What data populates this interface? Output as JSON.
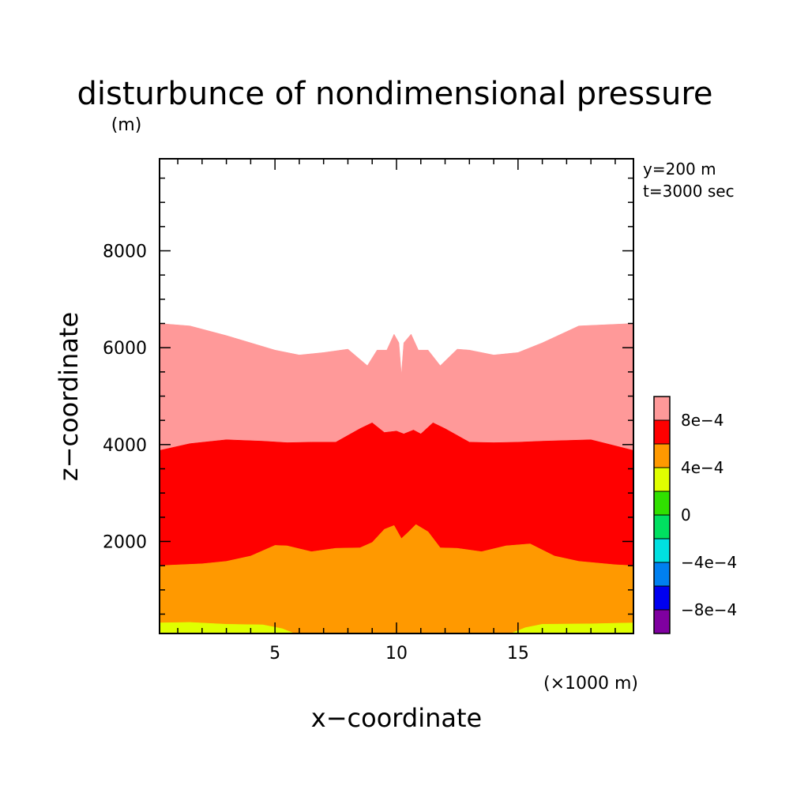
{
  "chart_data": {
    "type": "area",
    "title": "disturbunce of nondimensional pressure",
    "y_unit": "(m)",
    "x_unit": "(×1000 m)",
    "xlabel": "x−coordinate",
    "ylabel": "z−coordinate",
    "annotations": [
      "y=200 m",
      "t=3000 sec"
    ],
    "xlim": [
      0.25,
      19.75
    ],
    "ylim": [
      100,
      9900
    ],
    "x_ticks": [
      5,
      10,
      15
    ],
    "x_tick_labels": [
      "5",
      "10",
      "15"
    ],
    "y_ticks": [
      2000,
      4000,
      6000,
      8000
    ],
    "y_tick_labels": [
      "2000",
      "4000",
      "6000",
      "8000"
    ],
    "grid": false,
    "colorbar": {
      "colors": [
        "#7F00A0",
        "#0000F0",
        "#0080F0",
        "#00E0E0",
        "#00E060",
        "#30E000",
        "#E0FF00",
        "#FF9900",
        "#FF0000",
        "#FF9999"
      ],
      "tick_labels": [
        "−8e−4",
        "−4e−4",
        "0",
        "4e−4",
        "8e−4"
      ]
    },
    "bands": [
      {
        "level": "above 8e-4",
        "color": "#FF9999",
        "top": [
          [
            0.25,
            6500
          ],
          [
            1.5,
            6450
          ],
          [
            3,
            6250
          ],
          [
            5,
            5950
          ],
          [
            6,
            5850
          ],
          [
            7,
            5900
          ],
          [
            8,
            5970
          ],
          [
            8.8,
            5630
          ],
          [
            9.2,
            5950
          ],
          [
            9.6,
            5950
          ],
          [
            9.9,
            6280
          ],
          [
            10.1,
            6100
          ],
          [
            10.2,
            5450
          ],
          [
            10.3,
            6100
          ],
          [
            10.6,
            6280
          ],
          [
            10.9,
            5950
          ],
          [
            11.3,
            5950
          ],
          [
            11.8,
            5630
          ],
          [
            12.5,
            5970
          ],
          [
            13,
            5950
          ],
          [
            14,
            5850
          ],
          [
            15,
            5900
          ],
          [
            16,
            6100
          ],
          [
            17.5,
            6450
          ],
          [
            19.75,
            6500
          ]
        ],
        "bottom": [
          [
            0.25,
            3880
          ],
          [
            1.5,
            4020
          ],
          [
            3,
            4100
          ],
          [
            4.5,
            4070
          ],
          [
            5.5,
            4040
          ],
          [
            6.5,
            4050
          ],
          [
            7.5,
            4050
          ],
          [
            8.5,
            4330
          ],
          [
            9,
            4450
          ],
          [
            9.5,
            4250
          ],
          [
            10,
            4280
          ],
          [
            10.3,
            4220
          ],
          [
            10.7,
            4300
          ],
          [
            11,
            4220
          ],
          [
            11.5,
            4450
          ],
          [
            12,
            4330
          ],
          [
            13,
            4050
          ],
          [
            14,
            4040
          ],
          [
            15,
            4050
          ],
          [
            16,
            4070
          ],
          [
            18,
            4100
          ],
          [
            19.75,
            3880
          ]
        ]
      },
      {
        "level": "4e-4 to 8e-4",
        "color": "#FF0000",
        "top": [
          [
            0.25,
            3880
          ],
          [
            1.5,
            4020
          ],
          [
            3,
            4100
          ],
          [
            4.5,
            4070
          ],
          [
            5.5,
            4040
          ],
          [
            6.5,
            4050
          ],
          [
            7.5,
            4050
          ],
          [
            8.5,
            4330
          ],
          [
            9,
            4450
          ],
          [
            9.5,
            4250
          ],
          [
            10,
            4280
          ],
          [
            10.3,
            4220
          ],
          [
            10.7,
            4300
          ],
          [
            11,
            4220
          ],
          [
            11.5,
            4450
          ],
          [
            12,
            4330
          ],
          [
            13,
            4050
          ],
          [
            14,
            4040
          ],
          [
            15,
            4050
          ],
          [
            16,
            4070
          ],
          [
            18,
            4100
          ],
          [
            19.75,
            3880
          ]
        ],
        "bottom": [
          [
            0.25,
            1500
          ],
          [
            2,
            1540
          ],
          [
            3,
            1590
          ],
          [
            4,
            1700
          ],
          [
            5,
            1920
          ],
          [
            5.5,
            1910
          ],
          [
            6.5,
            1790
          ],
          [
            7.5,
            1860
          ],
          [
            8.5,
            1870
          ],
          [
            9,
            1980
          ],
          [
            9.5,
            2250
          ],
          [
            9.9,
            2330
          ],
          [
            10.2,
            2060
          ],
          [
            10.5,
            2200
          ],
          [
            10.8,
            2350
          ],
          [
            11.3,
            2200
          ],
          [
            11.8,
            1870
          ],
          [
            12.5,
            1860
          ],
          [
            13.5,
            1790
          ],
          [
            14.5,
            1910
          ],
          [
            15.5,
            1950
          ],
          [
            16.5,
            1700
          ],
          [
            17.5,
            1590
          ],
          [
            19,
            1520
          ],
          [
            19.75,
            1500
          ]
        ]
      },
      {
        "level": "0 to 4e-4",
        "color": "#FF9900",
        "top": [
          [
            0.25,
            1500
          ],
          [
            2,
            1540
          ],
          [
            3,
            1590
          ],
          [
            4,
            1700
          ],
          [
            5,
            1920
          ],
          [
            5.5,
            1910
          ],
          [
            6.5,
            1790
          ],
          [
            7.5,
            1860
          ],
          [
            8.5,
            1870
          ],
          [
            9,
            1980
          ],
          [
            9.5,
            2250
          ],
          [
            9.9,
            2330
          ],
          [
            10.2,
            2060
          ],
          [
            10.5,
            2200
          ],
          [
            10.8,
            2350
          ],
          [
            11.3,
            2200
          ],
          [
            11.8,
            1870
          ],
          [
            12.5,
            1860
          ],
          [
            13.5,
            1790
          ],
          [
            14.5,
            1910
          ],
          [
            15.5,
            1950
          ],
          [
            16.5,
            1700
          ],
          [
            17.5,
            1590
          ],
          [
            19,
            1520
          ],
          [
            19.75,
            1500
          ]
        ],
        "bottom": [
          [
            0.25,
            320
          ],
          [
            1.5,
            330
          ],
          [
            3,
            290
          ],
          [
            4.5,
            280
          ],
          [
            5.3,
            200
          ],
          [
            5.8,
            100
          ],
          [
            14.7,
            100
          ],
          [
            15.3,
            220
          ],
          [
            16,
            290
          ],
          [
            18,
            300
          ],
          [
            19.75,
            320
          ]
        ]
      },
      {
        "level": "-2e-4 to 0",
        "color": "#E0FF00",
        "top": [
          [
            0.25,
            320
          ],
          [
            1.5,
            330
          ],
          [
            3,
            290
          ],
          [
            4.5,
            280
          ],
          [
            5.3,
            200
          ],
          [
            5.8,
            100
          ],
          [
            14.7,
            100
          ],
          [
            15.3,
            220
          ],
          [
            16,
            290
          ],
          [
            18,
            300
          ],
          [
            19.75,
            320
          ]
        ],
        "bottom": [
          [
            0.25,
            100
          ],
          [
            19.75,
            100
          ]
        ]
      }
    ]
  }
}
